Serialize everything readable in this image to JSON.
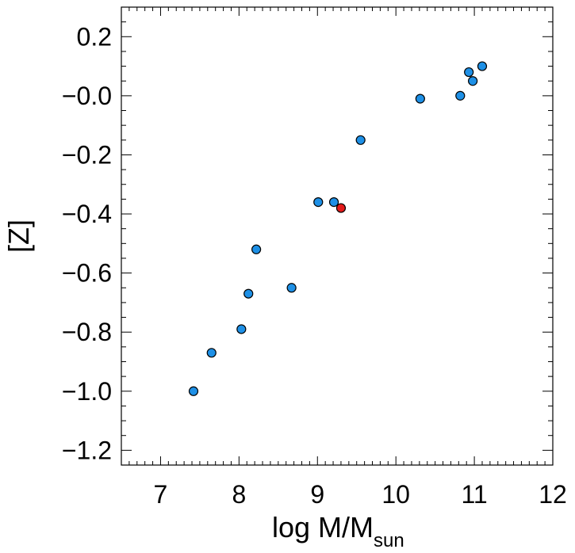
{
  "chart_data": {
    "type": "scatter",
    "xlabel": "log M/M",
    "xlabel_subscript": "sun",
    "ylabel": "[Z]",
    "xlim": [
      6.5,
      12.0
    ],
    "ylim": [
      -1.25,
      0.3
    ],
    "x_ticks": [
      7,
      8,
      9,
      10,
      11,
      12
    ],
    "x_tick_labels": [
      "7",
      "8",
      "9",
      "10",
      "11",
      "12"
    ],
    "y_ticks": [
      0.2,
      0.0,
      -0.2,
      -0.4,
      -0.6,
      -0.8,
      -1.0,
      -1.2
    ],
    "y_tick_labels": [
      "0.2",
      "−0.0",
      "−0.2",
      "−0.4",
      "−0.6",
      "−0.8",
      "−1.0",
      "−1.2"
    ],
    "grid": false,
    "colors": {
      "primary": "#1E90E6",
      "highlight": "#E31A1A",
      "edge": "#000000"
    },
    "series": [
      {
        "color": "#1E90E6",
        "points": [
          {
            "x": 7.42,
            "y": -1.0
          },
          {
            "x": 7.65,
            "y": -0.87
          },
          {
            "x": 8.03,
            "y": -0.79
          },
          {
            "x": 8.12,
            "y": -0.67
          },
          {
            "x": 8.22,
            "y": -0.52
          },
          {
            "x": 8.67,
            "y": -0.65
          },
          {
            "x": 9.01,
            "y": -0.36
          },
          {
            "x": 9.21,
            "y": -0.36
          },
          {
            "x": 9.55,
            "y": -0.15
          },
          {
            "x": 10.31,
            "y": -0.01
          },
          {
            "x": 10.82,
            "y": 0.0
          },
          {
            "x": 10.93,
            "y": 0.08
          },
          {
            "x": 10.98,
            "y": 0.05
          },
          {
            "x": 11.1,
            "y": 0.1
          }
        ]
      },
      {
        "color": "#E31A1A",
        "points": [
          {
            "x": 9.3,
            "y": -0.38
          }
        ]
      }
    ]
  }
}
